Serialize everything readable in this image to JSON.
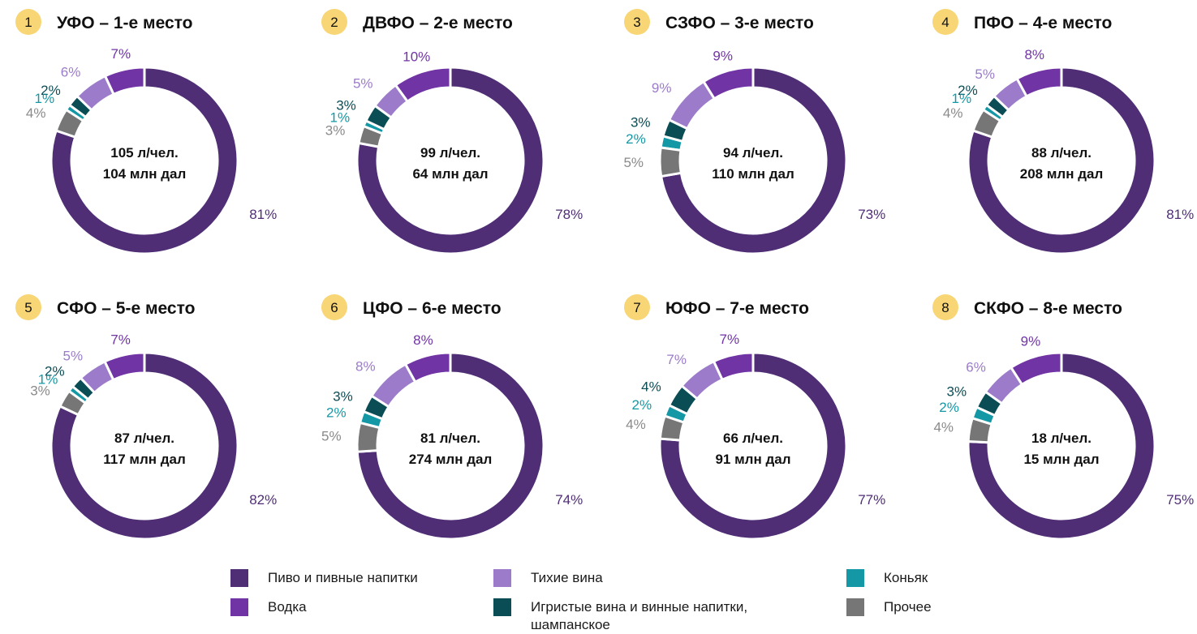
{
  "colors": {
    "badge": "#f8d675",
    "separator": "#ffffff"
  },
  "categories": [
    {
      "key": "beer",
      "label": "Пиво и пивные напитки",
      "color": "#4f2e76",
      "text_color": "#4f2e76"
    },
    {
      "key": "vodka",
      "label": "Водка",
      "color": "#7134a5",
      "text_color": "#7134a5"
    },
    {
      "key": "still_wine",
      "label": "Тихие вина",
      "color": "#9c7cca",
      "text_color": "#9c7cca"
    },
    {
      "key": "sparkling",
      "label": "Игристые вина и винные напитки,\nшампанское",
      "color": "#0b4d55",
      "text_color": "#0b4d55"
    },
    {
      "key": "cognac",
      "label": "Коньяк",
      "color": "#1598a6",
      "text_color": "#1598a6"
    },
    {
      "key": "other",
      "label": "Прочее",
      "color": "#767676",
      "text_color": "#8a8a8a"
    }
  ],
  "chart_data": [
    {
      "type": "pie",
      "rank": "1",
      "title": "УФО – 1-е место",
      "center_line1": "105 л/чел.",
      "center_line2": "104 млн дал",
      "values": [
        81,
        7,
        6,
        2,
        1,
        4
      ],
      "labels": [
        "81%",
        "7%",
        "6%",
        "2%",
        "1%",
        "4%"
      ]
    },
    {
      "type": "pie",
      "rank": "2",
      "title": "ДВФО – 2-е место",
      "center_line1": "99 л/чел.",
      "center_line2": "64 млн дал",
      "values": [
        78,
        10,
        5,
        3,
        1,
        3
      ],
      "labels": [
        "78%",
        "10%",
        "5%",
        "3%",
        "1%",
        "3%"
      ]
    },
    {
      "type": "pie",
      "rank": "3",
      "title": "СЗФО – 3-е место",
      "center_line1": "94 л/чел.",
      "center_line2": "110 млн дал",
      "values": [
        73,
        9,
        9,
        3,
        2,
        5
      ],
      "labels": [
        "73%",
        "9%",
        "9%",
        "3%",
        "2%",
        "5%"
      ]
    },
    {
      "type": "pie",
      "rank": "4",
      "title": "ПФО – 4-е место",
      "center_line1": "88 л/чел.",
      "center_line2": "208 млн дал",
      "values": [
        81,
        8,
        5,
        2,
        1,
        4
      ],
      "labels": [
        "81%",
        "8%",
        "5%",
        "2%",
        "1%",
        "4%"
      ]
    },
    {
      "type": "pie",
      "rank": "5",
      "title": "СФО – 5-е место",
      "center_line1": "87 л/чел.",
      "center_line2": "117 млн дал",
      "values": [
        82,
        7,
        5,
        2,
        1,
        3
      ],
      "labels": [
        "82%",
        "7%",
        "5%",
        "2%",
        "1%",
        "3%"
      ]
    },
    {
      "type": "pie",
      "rank": "6",
      "title": "ЦФО – 6-е место",
      "center_line1": "81 л/чел.",
      "center_line2": "274 млн дал",
      "values": [
        74,
        8,
        8,
        3,
        2,
        5
      ],
      "labels": [
        "74%",
        "8%",
        "8%",
        "3%",
        "2%",
        "5%"
      ]
    },
    {
      "type": "pie",
      "rank": "7",
      "title": "ЮФО – 7-е место",
      "center_line1": "66 л/чел.",
      "center_line2": "91 млн дал",
      "values": [
        77,
        7,
        7,
        4,
        2,
        4
      ],
      "labels": [
        "77%",
        "7%",
        "7%",
        "4%",
        "2%",
        "4%"
      ]
    },
    {
      "type": "pie",
      "rank": "8",
      "title": "СКФО – 8-е место",
      "center_line1": "18 л/чел.",
      "center_line2": "15 млн дал",
      "values": [
        75,
        9,
        6,
        3,
        2,
        4
      ],
      "labels": [
        "75%",
        "9%",
        "6%",
        "3%",
        "2%",
        "4%"
      ]
    }
  ]
}
